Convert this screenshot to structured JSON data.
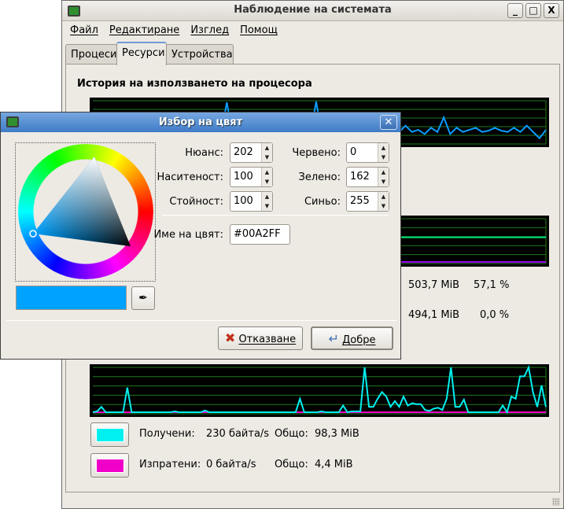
{
  "main_window": {
    "title": "Наблюдение на системата",
    "controls": {
      "minimize": "_",
      "maximize": "□",
      "close": "X"
    },
    "menu": [
      {
        "label": "Файл"
      },
      {
        "label": "Редактиране"
      },
      {
        "label": "Изглед"
      },
      {
        "label": "Помощ"
      }
    ],
    "tabs": [
      {
        "label": "Процеси"
      },
      {
        "label": "Ресурси",
        "active": true
      },
      {
        "label": "Устройства"
      }
    ],
    "cpu_section_title": "История на използването на процесора",
    "memory": {
      "rows": [
        {
          "used": "503,7 MiB",
          "percent": "57,1 %"
        },
        {
          "used": "494,1 MiB",
          "percent": "0,0 %"
        }
      ],
      "colors": {
        "memory": "#00e676",
        "swap": "#a000f0"
      }
    },
    "network": {
      "received": {
        "label": "Получени:",
        "rate": "230 байта/s",
        "total_label": "Общо:",
        "total": "98,3 MiB",
        "color": "#00f0f0"
      },
      "sent": {
        "label": "Изпратени:",
        "rate": "0 байта/s",
        "total_label": "Общо:",
        "total": "4,4 MiB",
        "color": "#f000c8"
      }
    }
  },
  "color_dialog": {
    "title": "Избор на цвят",
    "close": "✕",
    "fields": {
      "hue": {
        "label": "Нюанс:",
        "value": "202"
      },
      "saturation": {
        "label": "Наситеност:",
        "value": "100"
      },
      "value": {
        "label": "Стойност:",
        "value": "100"
      },
      "red": {
        "label": "Червено:",
        "value": "0"
      },
      "green": {
        "label": "Зелено:",
        "value": "162"
      },
      "blue": {
        "label": "Синьо:",
        "value": "255"
      }
    },
    "color_name": {
      "label": "Име на цвят:",
      "value": "#00A2FF"
    },
    "current_color": "#00A2FF",
    "cancel_label": "Отказване",
    "ok_label": "Добре"
  },
  "chart_data": [
    {
      "type": "line",
      "name": "cpu-history",
      "ylim": [
        0,
        100
      ],
      "grid": true,
      "color": "#0a9cff",
      "values": [
        8,
        10,
        6,
        9,
        12,
        7,
        8,
        10,
        9,
        6,
        8,
        11,
        7,
        9,
        10,
        8,
        6,
        9,
        12,
        8,
        10,
        96,
        10,
        8,
        9,
        7,
        11,
        8,
        10,
        9,
        6,
        8,
        10,
        7,
        9,
        98,
        8,
        10,
        7,
        9,
        8,
        5,
        5,
        60,
        55,
        30,
        25,
        45,
        25,
        40,
        25,
        30,
        20,
        35,
        25,
        60,
        20,
        35,
        25,
        30,
        35,
        25,
        28,
        35,
        28,
        25,
        35,
        25,
        40,
        25,
        10,
        30
      ]
    },
    {
      "type": "line",
      "name": "memory-history",
      "ylim": [
        0,
        100
      ],
      "grid": true,
      "series": [
        {
          "values": [
            57,
            57,
            57,
            57,
            57,
            57,
            57,
            57,
            57,
            57
          ]
        },
        {
          "values": [
            0,
            0,
            0,
            0,
            0,
            0,
            0,
            0,
            0,
            0
          ]
        }
      ]
    },
    {
      "type": "line",
      "name": "network-history",
      "ylim": [
        0,
        100
      ],
      "grid": true,
      "series": [
        {
          "values": [
            0,
            2,
            12,
            0,
            0,
            0,
            0,
            0,
            55,
            0,
            0,
            0,
            0,
            0,
            0,
            0,
            0,
            0,
            0,
            2,
            0,
            0,
            0,
            0,
            0,
            0,
            4,
            0,
            0,
            0,
            0,
            0,
            0,
            0,
            0,
            0,
            0,
            0,
            0,
            0,
            0,
            0,
            0,
            0,
            0,
            0,
            0,
            0,
            30,
            0,
            0,
            0,
            0,
            2,
            0,
            0,
            0,
            0,
            15,
            0,
            2,
            2,
            2,
            100,
            12,
            12,
            30,
            45,
            35,
            12,
            25,
            12,
            35,
            15,
            20,
            18,
            18,
            5,
            3,
            8,
            10,
            5,
            30,
            100,
            12,
            12,
            28,
            0,
            0,
            0,
            0,
            0,
            0,
            0,
            0,
            15,
            0,
            35,
            30,
            80,
            80,
            100,
            45,
            12,
            60,
            12
          ]
        },
        {
          "values": [
            0,
            0,
            0,
            0,
            0,
            0,
            0,
            0,
            0,
            0,
            0,
            0,
            0,
            0,
            0,
            0,
            0,
            0,
            0,
            0
          ]
        }
      ]
    }
  ]
}
